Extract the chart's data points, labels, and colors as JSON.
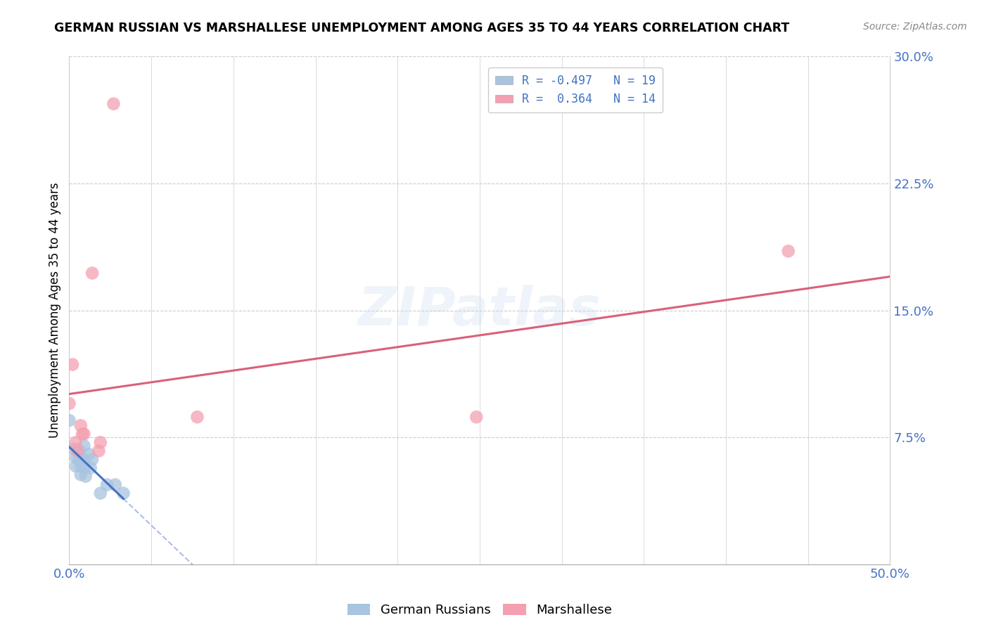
{
  "title": "GERMAN RUSSIAN VS MARSHALLESE UNEMPLOYMENT AMONG AGES 35 TO 44 YEARS CORRELATION CHART",
  "source": "Source: ZipAtlas.com",
  "ylabel": "Unemployment Among Ages 35 to 44 years",
  "xlim": [
    0.0,
    0.5
  ],
  "ylim": [
    0.0,
    0.3
  ],
  "xticks": [
    0.0,
    0.05,
    0.1,
    0.15,
    0.2,
    0.25,
    0.3,
    0.35,
    0.4,
    0.45,
    0.5
  ],
  "yticks": [
    0.0,
    0.075,
    0.15,
    0.225,
    0.3
  ],
  "blue_color": "#a8c4e0",
  "pink_color": "#f4a0b0",
  "blue_line_color": "#4472C4",
  "pink_line_color": "#d9607a",
  "blue_scatter": [
    [
      0.0,
      0.085
    ],
    [
      0.003,
      0.068
    ],
    [
      0.004,
      0.063
    ],
    [
      0.004,
      0.058
    ],
    [
      0.006,
      0.067
    ],
    [
      0.006,
      0.062
    ],
    [
      0.007,
      0.058
    ],
    [
      0.007,
      0.053
    ],
    [
      0.009,
      0.07
    ],
    [
      0.009,
      0.062
    ],
    [
      0.009,
      0.057
    ],
    [
      0.01,
      0.052
    ],
    [
      0.012,
      0.065
    ],
    [
      0.013,
      0.057
    ],
    [
      0.014,
      0.062
    ],
    [
      0.019,
      0.042
    ],
    [
      0.023,
      0.047
    ],
    [
      0.028,
      0.047
    ],
    [
      0.033,
      0.042
    ]
  ],
  "pink_scatter": [
    [
      0.0,
      0.095
    ],
    [
      0.002,
      0.118
    ],
    [
      0.004,
      0.072
    ],
    [
      0.005,
      0.067
    ],
    [
      0.007,
      0.082
    ],
    [
      0.008,
      0.077
    ],
    [
      0.009,
      0.077
    ],
    [
      0.014,
      0.172
    ],
    [
      0.018,
      0.067
    ],
    [
      0.019,
      0.072
    ],
    [
      0.027,
      0.272
    ],
    [
      0.078,
      0.087
    ],
    [
      0.248,
      0.087
    ],
    [
      0.438,
      0.185
    ]
  ],
  "watermark": "ZIPatlas",
  "bottom_legend_labels": [
    "German Russians",
    "Marshallese"
  ]
}
